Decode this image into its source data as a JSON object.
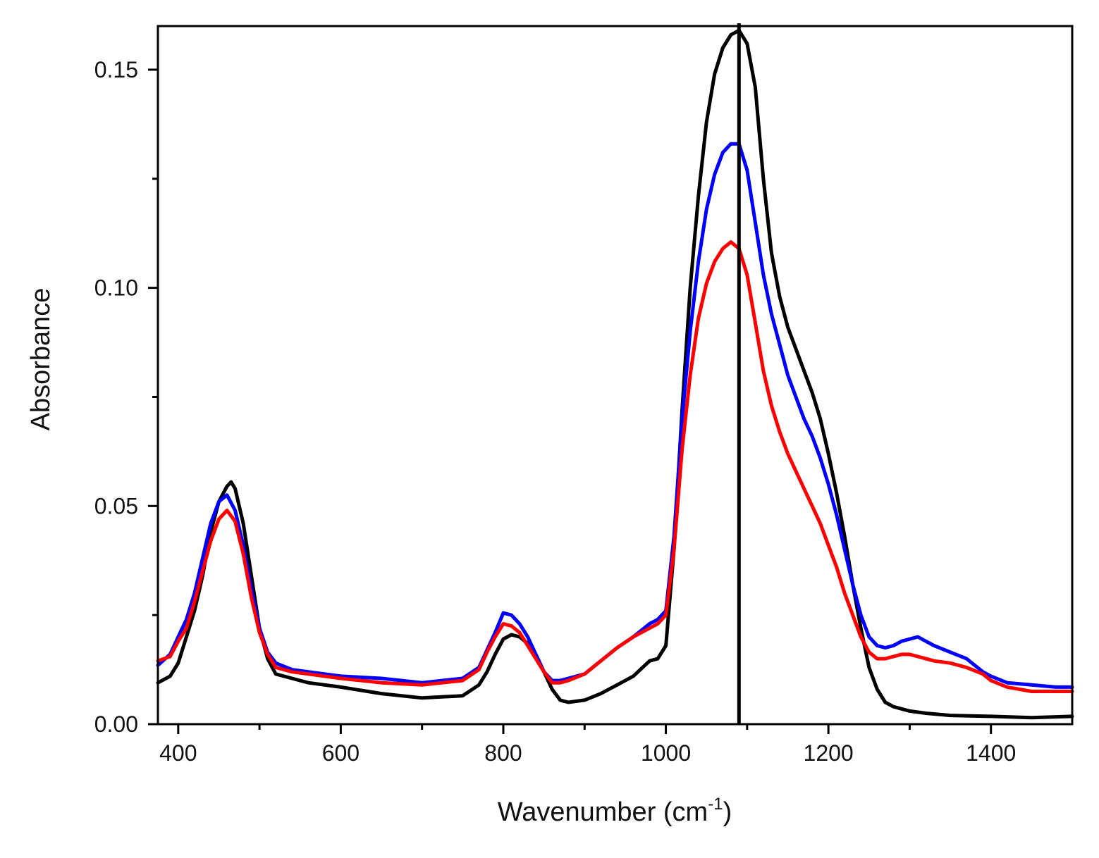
{
  "chart_data": {
    "type": "line",
    "title": "",
    "xlabel": "Wavenumber (cm",
    "xlabel_sup": "-1",
    "xlabel_close": ")",
    "ylabel": "Absorbance",
    "xlim": [
      375,
      1500
    ],
    "ylim": [
      0.0,
      0.16
    ],
    "x_ticks": [
      400,
      600,
      800,
      1000,
      1200,
      1400
    ],
    "x_tick_labels": [
      "400",
      "600",
      "800",
      "1000",
      "1200",
      "1400"
    ],
    "x_minor_ticks": [
      500,
      700,
      900,
      1100,
      1300
    ],
    "y_ticks": [
      0.0,
      0.05,
      0.1,
      0.15
    ],
    "y_tick_labels": [
      "0.00",
      "0.05",
      "0.10",
      "0.15"
    ],
    "vline_x": 1090,
    "grid": false,
    "series": [
      {
        "name": "black",
        "color": "#000000",
        "x": [
          375,
          390,
          400,
          410,
          420,
          430,
          440,
          450,
          460,
          465,
          470,
          480,
          490,
          500,
          510,
          520,
          540,
          560,
          600,
          650,
          700,
          750,
          770,
          780,
          790,
          800,
          810,
          820,
          830,
          840,
          850,
          860,
          870,
          880,
          900,
          920,
          940,
          960,
          980,
          990,
          1000,
          1010,
          1020,
          1030,
          1040,
          1050,
          1060,
          1070,
          1080,
          1090,
          1100,
          1110,
          1120,
          1130,
          1140,
          1150,
          1160,
          1170,
          1180,
          1190,
          1200,
          1210,
          1220,
          1230,
          1240,
          1250,
          1260,
          1270,
          1280,
          1300,
          1320,
          1350,
          1400,
          1450,
          1500
        ],
        "values": [
          0.0095,
          0.011,
          0.014,
          0.02,
          0.026,
          0.034,
          0.044,
          0.051,
          0.0545,
          0.0555,
          0.054,
          0.046,
          0.034,
          0.022,
          0.015,
          0.0115,
          0.0105,
          0.0095,
          0.0085,
          0.007,
          0.006,
          0.0065,
          0.009,
          0.012,
          0.016,
          0.0195,
          0.0205,
          0.02,
          0.0185,
          0.016,
          0.012,
          0.008,
          0.0055,
          0.005,
          0.0055,
          0.007,
          0.009,
          0.011,
          0.0145,
          0.015,
          0.018,
          0.04,
          0.072,
          0.1,
          0.121,
          0.138,
          0.149,
          0.155,
          0.158,
          0.159,
          0.156,
          0.146,
          0.125,
          0.108,
          0.098,
          0.091,
          0.086,
          0.081,
          0.076,
          0.07,
          0.062,
          0.053,
          0.043,
          0.032,
          0.022,
          0.013,
          0.008,
          0.005,
          0.004,
          0.003,
          0.0025,
          0.002,
          0.0018,
          0.0015,
          0.0018
        ]
      },
      {
        "name": "blue",
        "color": "#0000ff",
        "x": [
          375,
          390,
          400,
          410,
          420,
          430,
          440,
          450,
          460,
          470,
          480,
          490,
          500,
          510,
          520,
          540,
          560,
          600,
          650,
          700,
          750,
          770,
          780,
          790,
          800,
          810,
          820,
          830,
          840,
          850,
          860,
          870,
          880,
          900,
          920,
          940,
          960,
          980,
          990,
          1000,
          1010,
          1020,
          1030,
          1040,
          1050,
          1060,
          1070,
          1080,
          1090,
          1100,
          1110,
          1120,
          1130,
          1140,
          1150,
          1160,
          1170,
          1180,
          1190,
          1200,
          1210,
          1220,
          1230,
          1240,
          1250,
          1260,
          1270,
          1280,
          1290,
          1300,
          1310,
          1320,
          1330,
          1350,
          1370,
          1390,
          1400,
          1420,
          1450,
          1480,
          1500
        ],
        "values": [
          0.0135,
          0.016,
          0.02,
          0.024,
          0.03,
          0.038,
          0.046,
          0.051,
          0.0525,
          0.049,
          0.041,
          0.031,
          0.022,
          0.0165,
          0.014,
          0.0125,
          0.012,
          0.011,
          0.0105,
          0.0095,
          0.0105,
          0.013,
          0.017,
          0.021,
          0.0255,
          0.025,
          0.023,
          0.02,
          0.016,
          0.012,
          0.01,
          0.01,
          0.0105,
          0.0115,
          0.0145,
          0.0175,
          0.02,
          0.023,
          0.024,
          0.026,
          0.043,
          0.07,
          0.09,
          0.106,
          0.118,
          0.126,
          0.131,
          0.133,
          0.133,
          0.127,
          0.115,
          0.103,
          0.094,
          0.087,
          0.08,
          0.075,
          0.07,
          0.066,
          0.061,
          0.055,
          0.048,
          0.04,
          0.032,
          0.025,
          0.02,
          0.018,
          0.0175,
          0.018,
          0.019,
          0.0195,
          0.02,
          0.019,
          0.018,
          0.0165,
          0.015,
          0.012,
          0.011,
          0.0095,
          0.009,
          0.0085,
          0.0085
        ]
      },
      {
        "name": "red",
        "color": "#ff0000",
        "x": [
          375,
          390,
          400,
          410,
          420,
          430,
          440,
          450,
          460,
          470,
          480,
          490,
          500,
          510,
          520,
          540,
          560,
          600,
          650,
          700,
          750,
          770,
          780,
          790,
          800,
          810,
          820,
          830,
          840,
          850,
          860,
          870,
          880,
          900,
          920,
          940,
          960,
          980,
          990,
          1000,
          1010,
          1020,
          1030,
          1040,
          1050,
          1060,
          1070,
          1080,
          1090,
          1100,
          1110,
          1120,
          1130,
          1140,
          1150,
          1160,
          1170,
          1180,
          1190,
          1200,
          1210,
          1220,
          1230,
          1240,
          1250,
          1260,
          1270,
          1280,
          1290,
          1300,
          1310,
          1320,
          1330,
          1350,
          1370,
          1390,
          1400,
          1420,
          1450,
          1480,
          1500
        ],
        "values": [
          0.0145,
          0.0155,
          0.019,
          0.022,
          0.028,
          0.035,
          0.042,
          0.047,
          0.049,
          0.0465,
          0.039,
          0.029,
          0.021,
          0.016,
          0.013,
          0.012,
          0.0115,
          0.0105,
          0.0095,
          0.009,
          0.01,
          0.0125,
          0.0165,
          0.02,
          0.023,
          0.0225,
          0.021,
          0.018,
          0.015,
          0.012,
          0.0095,
          0.0095,
          0.01,
          0.0115,
          0.0145,
          0.0175,
          0.02,
          0.022,
          0.023,
          0.025,
          0.04,
          0.063,
          0.08,
          0.093,
          0.101,
          0.106,
          0.109,
          0.1105,
          0.109,
          0.103,
          0.092,
          0.081,
          0.073,
          0.067,
          0.062,
          0.058,
          0.054,
          0.05,
          0.046,
          0.041,
          0.036,
          0.03,
          0.025,
          0.02,
          0.0165,
          0.015,
          0.015,
          0.0155,
          0.016,
          0.016,
          0.0155,
          0.015,
          0.0145,
          0.014,
          0.013,
          0.0115,
          0.01,
          0.0085,
          0.0075,
          0.0075,
          0.0075
        ]
      }
    ]
  }
}
